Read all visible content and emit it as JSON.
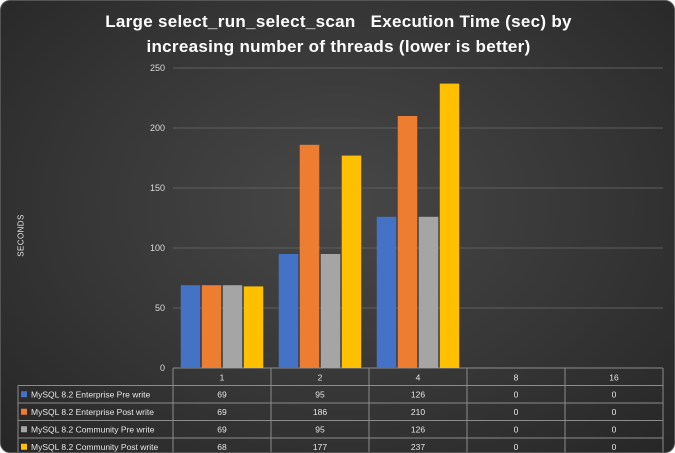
{
  "chart_data": {
    "type": "bar",
    "title_lines": [
      "Large select_run_select_scan   Execution Time (sec) by",
      "increasing number of threads (lower is better)"
    ],
    "ylabel": "SECONDS",
    "xlabel": "",
    "categories": [
      "1",
      "2",
      "4",
      "8",
      "16"
    ],
    "ylim": [
      0,
      250
    ],
    "yticks": [
      0,
      50,
      100,
      150,
      200,
      250
    ],
    "grid": true,
    "legend": "data table below plot",
    "series": [
      {
        "name": "MySQL 8.2 Enterprise Pre write",
        "color": "#4472C4",
        "values": [
          69,
          95,
          126,
          0,
          0
        ]
      },
      {
        "name": "MySQL 8.2 Enterprise Post write",
        "color": "#ED7D31",
        "values": [
          69,
          186,
          210,
          0,
          0
        ]
      },
      {
        "name": "MySQL 8.2 Community Pre write",
        "color": "#A5A5A5",
        "values": [
          69,
          95,
          126,
          0,
          0
        ]
      },
      {
        "name": "MySQL 8.2 Community Post write",
        "color": "#FFC000",
        "values": [
          68,
          177,
          237,
          0,
          0
        ]
      }
    ]
  }
}
